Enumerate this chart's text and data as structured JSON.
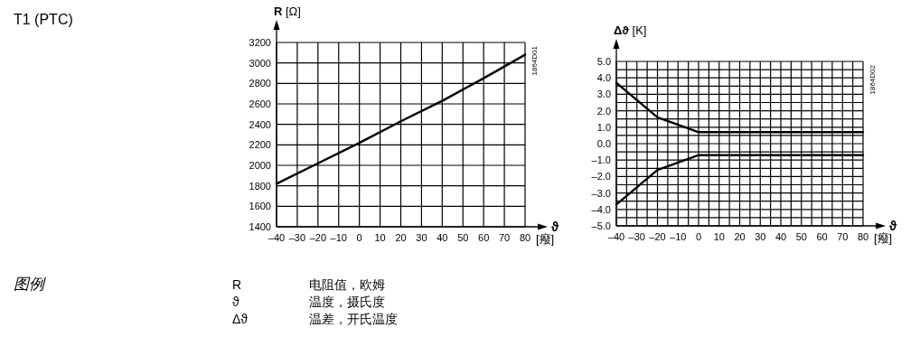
{
  "chart_data": [
    {
      "type": "other",
      "title": "T1 (PTC)"
    },
    {
      "type": "line",
      "ylabel": "R [Ω]",
      "xlabel": "ϑ",
      "annotations": [
        "[癈]",
        "1864D01"
      ],
      "x": [
        -40,
        -20,
        0,
        20,
        40,
        60,
        80
      ],
      "series": [
        {
          "color": "#000000",
          "values": [
            1820,
            2020,
            2220,
            2430,
            2630,
            2850,
            3080
          ]
        }
      ],
      "xlim": [
        -40,
        80
      ],
      "xticks": [
        {
          "value": -40,
          "label": "–40"
        },
        {
          "value": -30,
          "label": "–30"
        },
        {
          "value": -20,
          "label": "–20"
        },
        {
          "value": -10,
          "label": "–10"
        },
        0,
        10,
        20,
        30,
        40,
        50,
        60,
        70,
        80
      ],
      "ylim": [
        1400,
        3200
      ],
      "yticks": [
        1400,
        1600,
        1800,
        2000,
        2200,
        2400,
        2600,
        2800,
        3000,
        3200
      ],
      "grid": true,
      "marker": "none",
      "line_style": "solid"
    },
    {
      "type": "line",
      "ylabel": "Δϑ [K]",
      "xlabel": "ϑ",
      "annotations": [
        "[癈]",
        "1864D02"
      ],
      "x": [
        -40,
        -20,
        0,
        80
      ],
      "series": [
        {
          "color": "#000000",
          "values": [
            3.7,
            1.6,
            0.7,
            0.7
          ]
        },
        {
          "color": "#000000",
          "values": [
            -3.7,
            -1.6,
            -0.7,
            -0.7
          ]
        }
      ],
      "xlim": [
        -40,
        80
      ],
      "xticks": [
        {
          "value": -40,
          "label": "–40"
        },
        {
          "value": -35,
          "label": null
        },
        {
          "value": -30,
          "label": "–30"
        },
        {
          "value": -25,
          "label": null
        },
        {
          "value": -20,
          "label": "–20"
        },
        {
          "value": -15,
          "label": null
        },
        {
          "value": -10,
          "label": "–10"
        },
        {
          "value": -5,
          "label": null
        },
        0,
        {
          "value": 5,
          "label": null
        },
        10,
        {
          "value": 15,
          "label": null
        },
        20,
        {
          "value": 25,
          "label": null
        },
        30,
        {
          "value": 35,
          "label": null
        },
        40,
        {
          "value": 45,
          "label": null
        },
        50,
        {
          "value": 55,
          "label": null
        },
        60,
        {
          "value": 65,
          "label": null
        },
        70,
        {
          "value": 75,
          "label": null
        },
        80
      ],
      "ylim": [
        -5,
        5
      ],
      "yticks": [
        {
          "value": -5,
          "label": "–5.0"
        },
        {
          "value": -4.5,
          "label": null
        },
        {
          "value": -4,
          "label": "–4.0"
        },
        {
          "value": -3.5,
          "label": null
        },
        {
          "value": -3,
          "label": "–3.0"
        },
        {
          "value": -2.5,
          "label": null
        },
        {
          "value": -2,
          "label": "–2.0"
        },
        {
          "value": -1.5,
          "label": null
        },
        {
          "value": -1,
          "label": "–1.0"
        },
        {
          "value": -0.5,
          "label": null
        },
        {
          "value": 0,
          "label": "0.0"
        },
        {
          "value": 0.5,
          "label": null
        },
        {
          "value": 1,
          "label": "1.0"
        },
        {
          "value": 1.5,
          "label": null
        },
        {
          "value": 2,
          "label": "2.0"
        },
        {
          "value": 2.5,
          "label": null
        },
        {
          "value": 3,
          "label": "3.0"
        },
        {
          "value": 3.5,
          "label": null
        },
        {
          "value": 4,
          "label": "4.0"
        },
        {
          "value": 4.5,
          "label": null
        },
        {
          "value": 5,
          "label": "5.0"
        }
      ],
      "grid": true,
      "marker": "none",
      "line_style": "solid"
    },
    {
      "type": "other",
      "title": "图例",
      "annotations": [
        "R",
        "电阻值，欧姆",
        "ϑ",
        "温度，摄氏度",
        "Δϑ",
        "温差，开氏温度"
      ]
    }
  ]
}
